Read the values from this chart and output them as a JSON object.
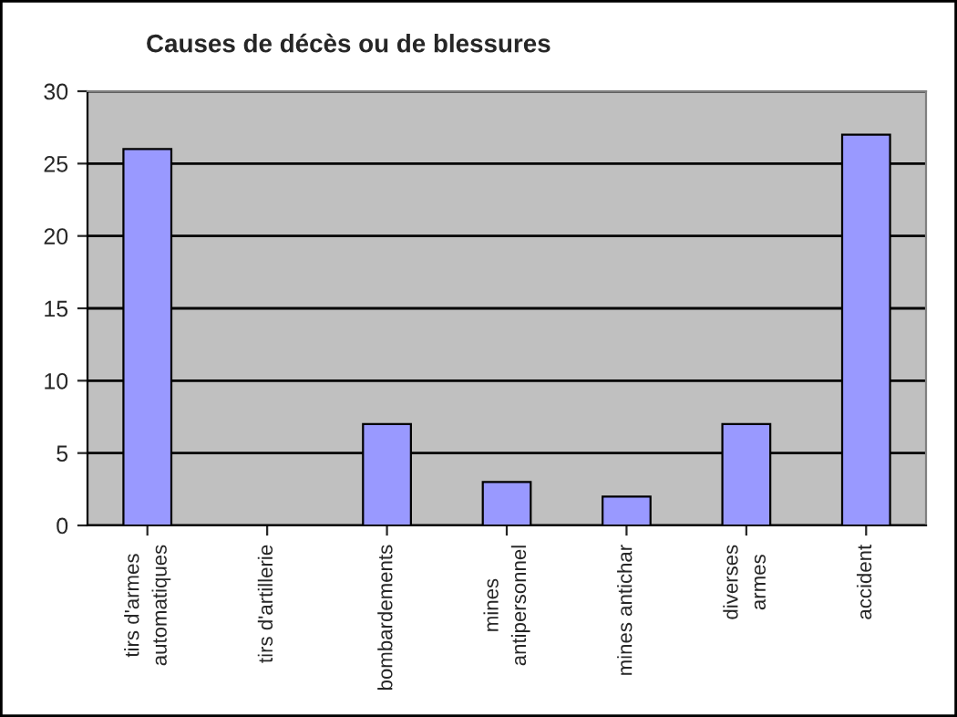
{
  "chart_data": {
    "type": "bar",
    "title": "Causes de décès ou de blessures",
    "categories": [
      "tirs d'armes\nautomatiques",
      "tirs d'artillerie",
      "bombardements",
      "mines\nantipersonnel",
      "mines antichar",
      "diverses\narmes",
      "accident"
    ],
    "values": [
      26,
      null,
      7,
      3,
      2,
      7,
      27
    ],
    "color": "#9999ff",
    "ylim": [
      0,
      30
    ],
    "yticks": [
      0,
      5,
      10,
      15,
      20,
      25,
      30
    ],
    "grid": "y"
  }
}
